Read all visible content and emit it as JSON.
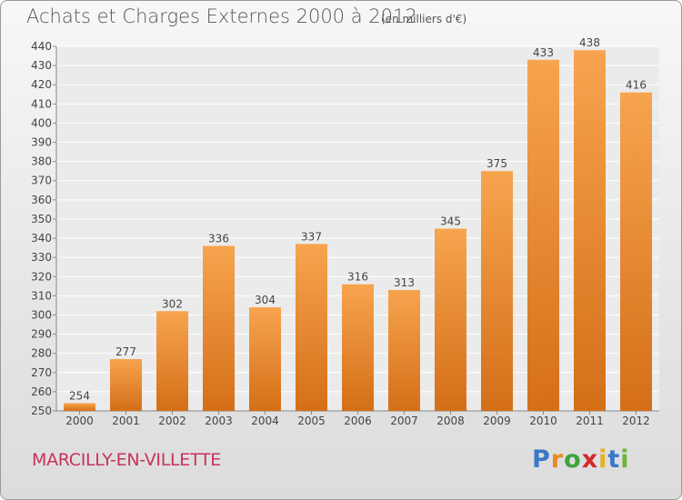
{
  "header": {
    "title": "Achats et Charges Externes 2000 à 2012",
    "unit": "(en milliers d'€)"
  },
  "footer": {
    "place": "MARCILLY-EN-VILLETTE",
    "logo": {
      "p": "P",
      "r": "r",
      "o": "o",
      "x": "x",
      "i1": "i",
      "t": "t",
      "i2": "i"
    }
  },
  "colors": {
    "bar_light": "#f7a44e",
    "bar_dark": "#d46f18",
    "place": "#c8325a"
  },
  "chart_data": {
    "type": "bar",
    "title": "Achats et Charges Externes 2000 à 2012",
    "subtitle": "(en milliers d'€)",
    "categories": [
      "2000",
      "2001",
      "2002",
      "2003",
      "2004",
      "2005",
      "2006",
      "2007",
      "2008",
      "2009",
      "2010",
      "2011",
      "2012"
    ],
    "values": [
      254,
      277,
      302,
      336,
      304,
      337,
      316,
      313,
      345,
      375,
      433,
      438,
      416
    ],
    "ylim": [
      250,
      440
    ],
    "yticks": [
      250,
      260,
      270,
      280,
      290,
      300,
      310,
      320,
      330,
      340,
      350,
      360,
      370,
      380,
      390,
      400,
      410,
      420,
      430,
      440
    ],
    "grid": true,
    "xlabel": "",
    "ylabel": ""
  }
}
